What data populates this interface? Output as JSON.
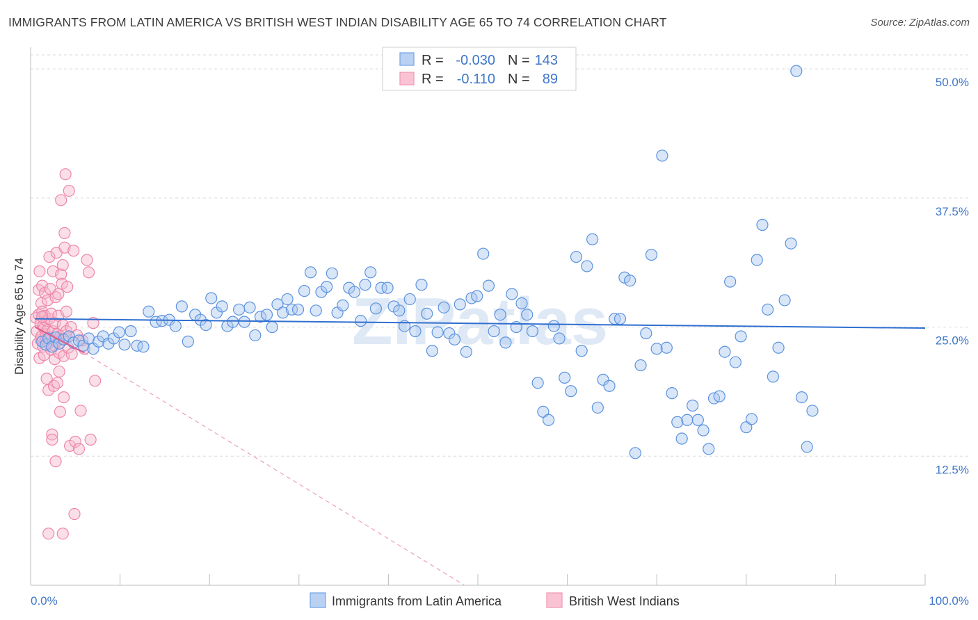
{
  "title": "IMMIGRANTS FROM LATIN AMERICA VS BRITISH WEST INDIAN DISABILITY AGE 65 TO 74 CORRELATION CHART",
  "source": "Source: ZipAtlas.com",
  "watermark": "ZIPatlas",
  "colors": {
    "blue": "#7aa7e6",
    "blue_line": "#2f6fd0",
    "pink": "#f29bb8",
    "pink_line": "#e05a8a",
    "grid": "#d9d9d9",
    "label_blue": "#3f77c9"
  },
  "legend": {
    "rows": [
      {
        "r_label": "R =",
        "r_value": "-0.030",
        "n_label": "N =",
        "n_value": "143"
      },
      {
        "r_label": "R =",
        "r_value": "-0.110",
        "n_label": "N =",
        "n_value": "89"
      }
    ]
  },
  "chart_data": {
    "type": "scatter",
    "ylabel": "Disability Age 65 to 74",
    "xlim": [
      0,
      100
    ],
    "ylim": [
      0,
      52.5
    ],
    "y_ticks": [
      12.5,
      25.0,
      37.5,
      50.0
    ],
    "y_tick_labels": [
      "12.5%",
      "25.0%",
      "37.5%",
      "50.0%"
    ],
    "x_tick_labels": [
      "0.0%",
      "100.0%"
    ],
    "grid": true,
    "legend_position": "top-center",
    "series": [
      {
        "name": "Immigrants from Latin America",
        "color": "#7aa7e6",
        "trend": {
          "x": [
            0.5,
            100
          ],
          "y": [
            25.8,
            24.9
          ]
        },
        "points": [
          [
            1.3,
            23.6
          ],
          [
            1.7,
            23.3
          ],
          [
            2.0,
            23.9
          ],
          [
            2.4,
            23.1
          ],
          [
            2.8,
            24.0
          ],
          [
            3.2,
            23.4
          ],
          [
            3.7,
            23.8
          ],
          [
            4.3,
            24.1
          ],
          [
            4.8,
            23.5
          ],
          [
            5.4,
            23.7
          ],
          [
            5.9,
            23.2
          ],
          [
            6.5,
            23.9
          ],
          [
            7.0,
            22.9
          ],
          [
            7.6,
            23.6
          ],
          [
            8.1,
            24.1
          ],
          [
            8.7,
            23.4
          ],
          [
            9.3,
            23.9
          ],
          [
            9.9,
            24.5
          ],
          [
            10.5,
            23.3
          ],
          [
            11.2,
            24.6
          ],
          [
            11.9,
            23.2
          ],
          [
            12.6,
            23.1
          ],
          [
            13.2,
            26.5
          ],
          [
            14.0,
            25.5
          ],
          [
            14.7,
            25.6
          ],
          [
            15.5,
            25.7
          ],
          [
            16.2,
            25.1
          ],
          [
            16.9,
            27.0
          ],
          [
            17.6,
            23.6
          ],
          [
            18.4,
            26.2
          ],
          [
            19.0,
            25.7
          ],
          [
            19.6,
            25.2
          ],
          [
            20.2,
            27.8
          ],
          [
            20.8,
            26.4
          ],
          [
            21.4,
            27.0
          ],
          [
            22.0,
            25.1
          ],
          [
            22.6,
            25.5
          ],
          [
            23.3,
            26.7
          ],
          [
            23.9,
            25.5
          ],
          [
            24.5,
            26.9
          ],
          [
            25.1,
            24.2
          ],
          [
            25.7,
            26.0
          ],
          [
            26.4,
            26.2
          ],
          [
            27.0,
            25.0
          ],
          [
            27.6,
            27.2
          ],
          [
            28.2,
            26.4
          ],
          [
            28.7,
            27.7
          ],
          [
            29.2,
            26.7
          ],
          [
            29.9,
            26.7
          ],
          [
            30.6,
            28.5
          ],
          [
            31.3,
            30.3
          ],
          [
            31.9,
            26.6
          ],
          [
            32.5,
            28.4
          ],
          [
            33.1,
            28.9
          ],
          [
            33.7,
            30.2
          ],
          [
            34.3,
            26.4
          ],
          [
            34.9,
            27.1
          ],
          [
            35.6,
            28.8
          ],
          [
            36.2,
            28.4
          ],
          [
            36.9,
            25.6
          ],
          [
            37.4,
            29.1
          ],
          [
            38.0,
            30.3
          ],
          [
            38.6,
            26.8
          ],
          [
            39.2,
            28.8
          ],
          [
            39.9,
            28.8
          ],
          [
            40.6,
            27.0
          ],
          [
            41.2,
            26.6
          ],
          [
            41.8,
            25.1
          ],
          [
            42.4,
            27.7
          ],
          [
            43.0,
            24.6
          ],
          [
            43.7,
            29.1
          ],
          [
            44.3,
            26.3
          ],
          [
            44.9,
            22.7
          ],
          [
            45.5,
            24.5
          ],
          [
            46.2,
            26.9
          ],
          [
            46.8,
            24.4
          ],
          [
            47.4,
            23.8
          ],
          [
            48.0,
            27.2
          ],
          [
            48.7,
            22.6
          ],
          [
            49.3,
            27.8
          ],
          [
            49.9,
            28.0
          ],
          [
            50.6,
            32.1
          ],
          [
            51.2,
            29.0
          ],
          [
            51.8,
            24.6
          ],
          [
            52.5,
            26.2
          ],
          [
            53.1,
            23.5
          ],
          [
            53.8,
            28.2
          ],
          [
            54.3,
            25.0
          ],
          [
            54.9,
            27.3
          ],
          [
            55.5,
            26.2
          ],
          [
            56.1,
            24.6
          ],
          [
            56.7,
            19.6
          ],
          [
            57.3,
            16.8
          ],
          [
            57.9,
            16.0
          ],
          [
            58.5,
            25.1
          ],
          [
            59.1,
            23.9
          ],
          [
            59.7,
            20.1
          ],
          [
            60.4,
            18.8
          ],
          [
            61.0,
            31.8
          ],
          [
            61.6,
            22.7
          ],
          [
            62.2,
            30.9
          ],
          [
            62.8,
            33.5
          ],
          [
            63.4,
            17.2
          ],
          [
            64.0,
            19.9
          ],
          [
            64.7,
            19.3
          ],
          [
            65.3,
            25.8
          ],
          [
            65.9,
            25.8
          ],
          [
            66.4,
            29.8
          ],
          [
            67.0,
            29.5
          ],
          [
            67.6,
            12.8
          ],
          [
            68.2,
            21.3
          ],
          [
            68.8,
            24.4
          ],
          [
            69.4,
            32.0
          ],
          [
            70.0,
            22.9
          ],
          [
            70.6,
            41.6
          ],
          [
            71.1,
            23.0
          ],
          [
            71.7,
            18.6
          ],
          [
            72.3,
            15.8
          ],
          [
            72.8,
            14.2
          ],
          [
            73.4,
            16.0
          ],
          [
            74.0,
            17.4
          ],
          [
            74.6,
            16.0
          ],
          [
            75.2,
            15.0
          ],
          [
            75.8,
            13.2
          ],
          [
            76.4,
            18.1
          ],
          [
            77.0,
            18.3
          ],
          [
            77.6,
            22.6
          ],
          [
            78.2,
            29.4
          ],
          [
            78.8,
            21.6
          ],
          [
            79.4,
            24.1
          ],
          [
            80.0,
            15.3
          ],
          [
            80.6,
            16.1
          ],
          [
            81.2,
            31.5
          ],
          [
            81.8,
            34.9
          ],
          [
            82.4,
            26.7
          ],
          [
            83.0,
            20.2
          ],
          [
            83.6,
            23.0
          ],
          [
            84.3,
            27.6
          ],
          [
            85.0,
            33.1
          ],
          [
            85.6,
            49.8
          ],
          [
            86.2,
            18.2
          ],
          [
            86.8,
            13.4
          ],
          [
            87.4,
            16.9
          ]
        ]
      },
      {
        "name": "British West Indians",
        "color": "#f29bb8",
        "trend": {
          "x": [
            0.5,
            6.0
          ],
          "y": [
            25.0,
            22.5
          ],
          "dash_x": [
            6.0,
            48.5
          ],
          "dash_y": [
            22.5,
            0.0
          ]
        },
        "points": [
          [
            0.6,
            25.9
          ],
          [
            0.7,
            24.6
          ],
          [
            0.8,
            23.4
          ],
          [
            0.9,
            26.2
          ],
          [
            0.9,
            28.6
          ],
          [
            1.0,
            30.4
          ],
          [
            1.0,
            22.0
          ],
          [
            1.1,
            25.3
          ],
          [
            1.1,
            23.8
          ],
          [
            1.2,
            27.3
          ],
          [
            1.2,
            24.1
          ],
          [
            1.3,
            26.5
          ],
          [
            1.3,
            29.0
          ],
          [
            1.4,
            25.1
          ],
          [
            1.4,
            23.1
          ],
          [
            1.5,
            24.9
          ],
          [
            1.5,
            22.3
          ],
          [
            1.6,
            26.1
          ],
          [
            1.6,
            28.3
          ],
          [
            1.7,
            24.3
          ],
          [
            1.7,
            23.7
          ],
          [
            1.8,
            25.6
          ],
          [
            1.8,
            20.0
          ],
          [
            1.9,
            27.6
          ],
          [
            1.9,
            24.7
          ],
          [
            2.0,
            23.4
          ],
          [
            2.0,
            18.9
          ],
          [
            2.1,
            25.8
          ],
          [
            2.1,
            31.8
          ],
          [
            2.2,
            24.0
          ],
          [
            2.2,
            28.7
          ],
          [
            2.3,
            22.8
          ],
          [
            2.3,
            26.3
          ],
          [
            2.4,
            14.6
          ],
          [
            2.4,
            14.1
          ],
          [
            2.5,
            24.6
          ],
          [
            2.5,
            30.4
          ],
          [
            2.6,
            23.2
          ],
          [
            2.6,
            19.3
          ],
          [
            2.7,
            21.9
          ],
          [
            2.7,
            25.4
          ],
          [
            2.8,
            12.0
          ],
          [
            2.8,
            27.9
          ],
          [
            2.9,
            23.6
          ],
          [
            2.9,
            32.2
          ],
          [
            3.0,
            24.3
          ],
          [
            3.0,
            19.6
          ],
          [
            3.1,
            26.1
          ],
          [
            3.1,
            28.2
          ],
          [
            3.2,
            22.5
          ],
          [
            3.2,
            20.7
          ],
          [
            3.3,
            24.1
          ],
          [
            3.3,
            16.8
          ],
          [
            3.4,
            30.1
          ],
          [
            3.4,
            37.3
          ],
          [
            3.5,
            23.8
          ],
          [
            3.5,
            29.2
          ],
          [
            3.6,
            25.2
          ],
          [
            3.6,
            31.0
          ],
          [
            3.7,
            22.2
          ],
          [
            3.7,
            18.2
          ],
          [
            3.8,
            32.7
          ],
          [
            3.8,
            34.1
          ],
          [
            3.9,
            23.9
          ],
          [
            3.9,
            39.8
          ],
          [
            4.0,
            26.5
          ],
          [
            4.0,
            24.6
          ],
          [
            4.1,
            28.9
          ],
          [
            4.2,
            23.0
          ],
          [
            4.3,
            38.2
          ],
          [
            4.4,
            13.5
          ],
          [
            4.5,
            25.0
          ],
          [
            4.6,
            22.4
          ],
          [
            4.8,
            32.4
          ],
          [
            5.0,
            13.9
          ],
          [
            5.2,
            24.2
          ],
          [
            5.4,
            13.2
          ],
          [
            5.6,
            16.9
          ],
          [
            5.8,
            23.7
          ],
          [
            6.0,
            22.9
          ],
          [
            6.3,
            31.5
          ],
          [
            6.5,
            30.3
          ],
          [
            6.7,
            14.1
          ],
          [
            7.0,
            25.4
          ],
          [
            7.2,
            19.8
          ],
          [
            2.0,
            5.0
          ],
          [
            3.6,
            5.0
          ],
          [
            4.9,
            6.9
          ],
          [
            1.3,
            26.0
          ]
        ]
      }
    ]
  }
}
